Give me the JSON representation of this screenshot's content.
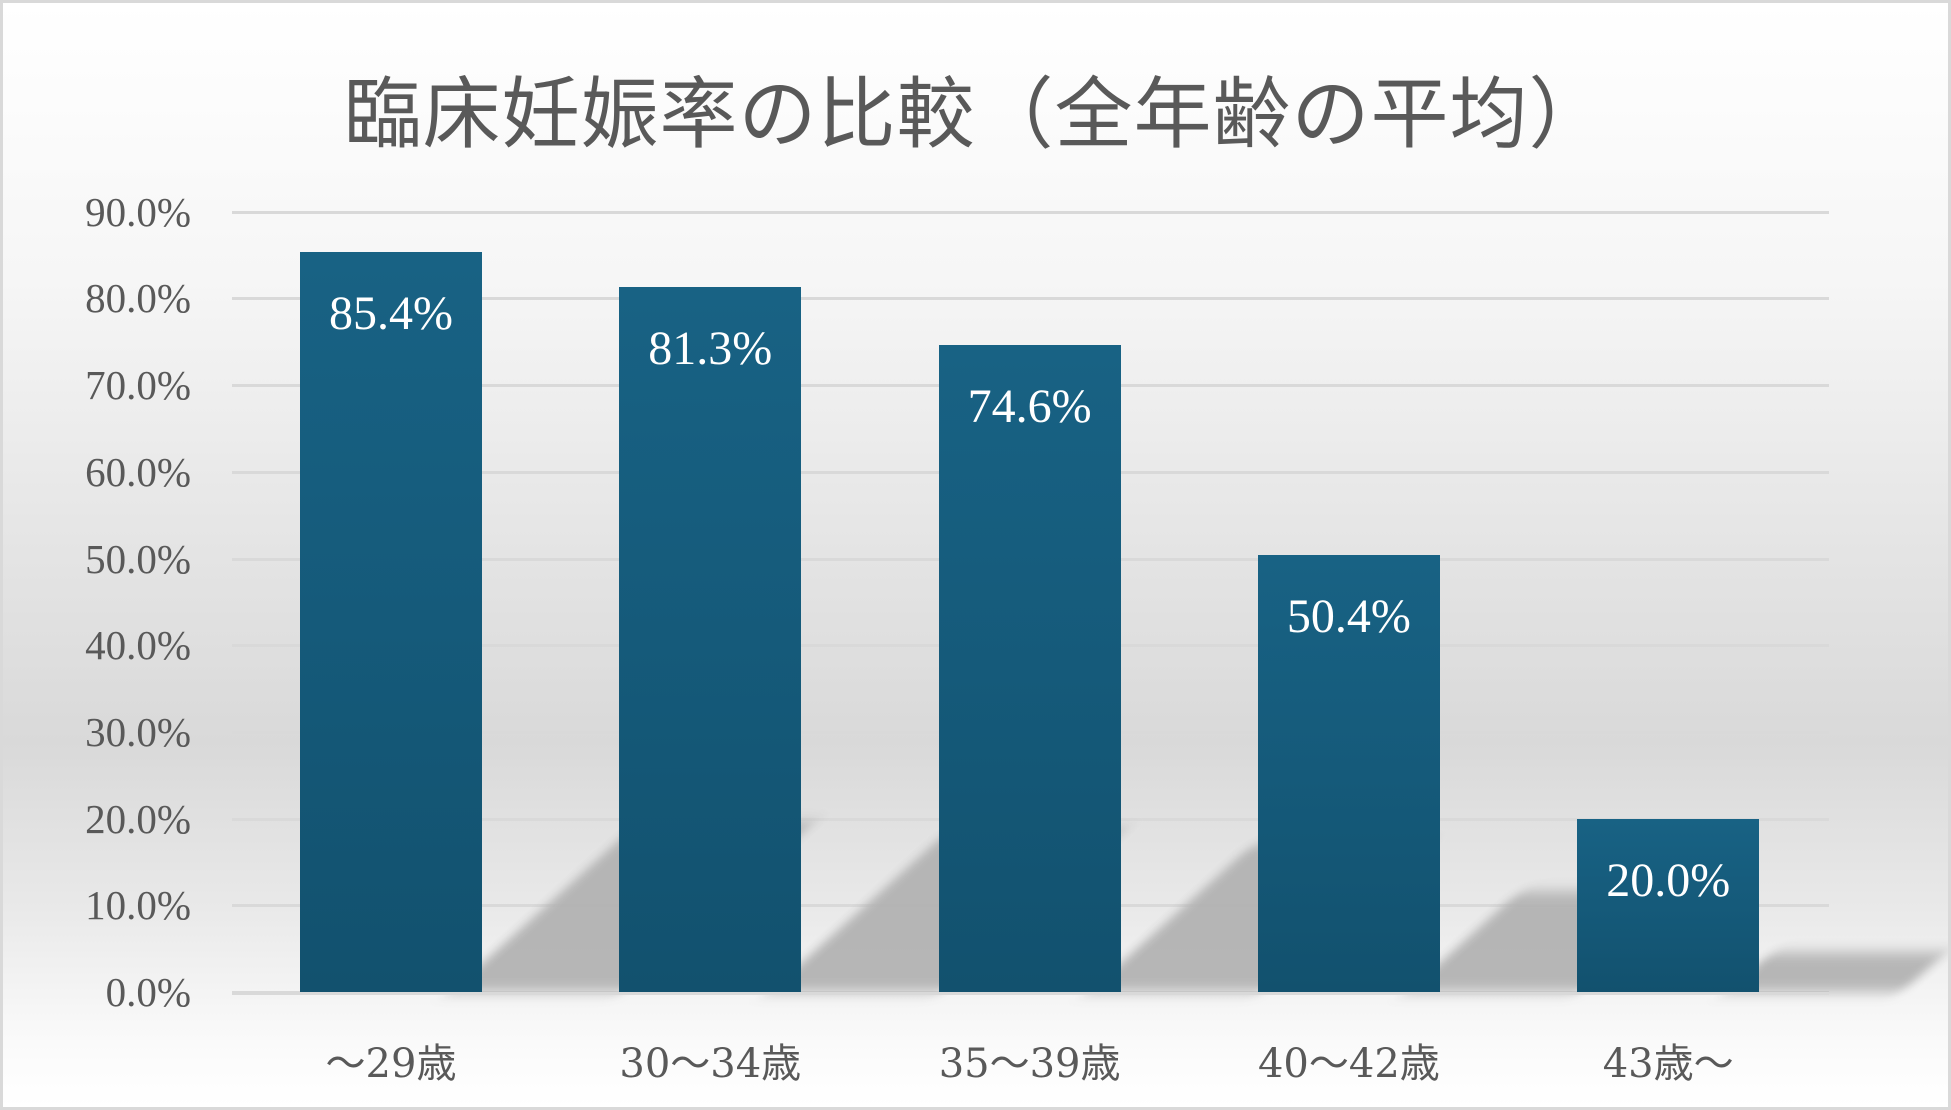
{
  "chart": {
    "title": "臨床妊娠率の比較（全年齢の平均）",
    "y_ticks": [
      "90.0%",
      "80.0%",
      "70.0%",
      "60.0%",
      "50.0%",
      "40.0%",
      "30.0%",
      "20.0%",
      "10.0%",
      "0.0%"
    ],
    "categories": [
      "～29歳",
      "30～34歳",
      "35～39歳",
      "40～42歳",
      "43歳～"
    ],
    "data_labels": [
      "85.4%",
      "81.3%",
      "74.6%",
      "50.4%",
      "20.0%"
    ],
    "bar_color_top": "#186284",
    "bar_color_bottom": "#12516e",
    "text_color": "#595959",
    "gridline_color": "#d9d9d9"
  },
  "chart_data": {
    "type": "bar",
    "title": "臨床妊娠率の比較（全年齢の平均）",
    "categories": [
      "～29歳",
      "30～34歳",
      "35～39歳",
      "40～42歳",
      "43歳～"
    ],
    "values": [
      85.4,
      81.3,
      74.6,
      50.4,
      20.0
    ],
    "value_format": "percent",
    "xlabel": "",
    "ylabel": "",
    "ylim": [
      0,
      90
    ],
    "y_tick_step": 10,
    "grid": true,
    "legend": "none",
    "data_labels": true
  }
}
